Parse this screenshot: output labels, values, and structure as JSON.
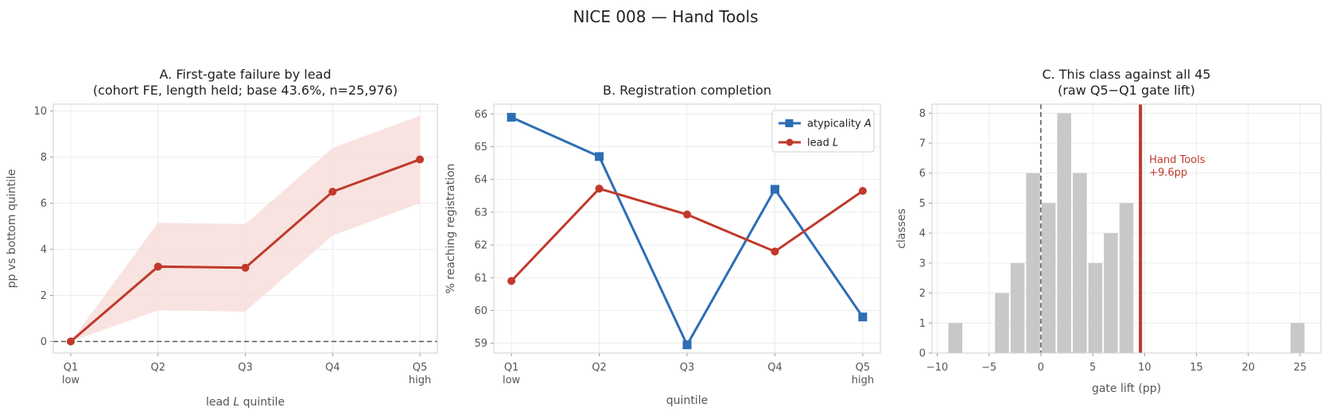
{
  "figure": {
    "title": "NICE 008 — Hand Tools"
  },
  "colors": {
    "red": "#c0392b",
    "blue": "#2c6db5",
    "band": "#f5d9d6",
    "bar": "#c8c8c8",
    "zero": "#555555"
  },
  "chart_data": [
    {
      "id": "A",
      "type": "line",
      "title_lines": [
        "A. First-gate failure by lead",
        "(cohort FE, length held; base 43.6%, n=25,976)"
      ],
      "xlabel": "lead L quintile",
      "ylabel": "pp vs bottom quintile",
      "categories": [
        "Q1",
        "Q2",
        "Q3",
        "Q4",
        "Q5"
      ],
      "category_sublabels": [
        "low",
        "",
        "",
        "",
        "high"
      ],
      "values": [
        0.0,
        3.25,
        3.2,
        6.5,
        7.9
      ],
      "ci_low": [
        0.0,
        1.35,
        1.3,
        4.6,
        6.0
      ],
      "ci_high": [
        0.0,
        5.15,
        5.1,
        8.4,
        9.8
      ],
      "ylim": [
        -0.5,
        10.3
      ],
      "yticks": [
        0,
        2,
        4,
        6,
        8,
        10
      ],
      "reference_line": 0,
      "grid": true
    },
    {
      "id": "B",
      "type": "line",
      "title_lines": [
        "B. Registration completion"
      ],
      "xlabel": "quintile",
      "ylabel": "% reaching registration",
      "categories": [
        "Q1",
        "Q2",
        "Q3",
        "Q4",
        "Q5"
      ],
      "category_sublabels": [
        "low",
        "",
        "",
        "",
        "high"
      ],
      "ylim": [
        58.7,
        66.3
      ],
      "yticks": [
        59,
        60,
        61,
        62,
        63,
        64,
        65,
        66
      ],
      "series": [
        {
          "name": "atypicality A",
          "name_text": "atypicality ",
          "name_var": "A",
          "marker": "square",
          "color": "#2c6db5",
          "values": [
            65.9,
            64.7,
            58.95,
            63.7,
            59.8
          ]
        },
        {
          "name": "lead L",
          "name_text": "lead ",
          "name_var": "L",
          "marker": "circle",
          "color": "#c0392b",
          "values": [
            60.9,
            63.72,
            62.93,
            61.8,
            63.65
          ]
        }
      ],
      "legend": "top-right",
      "grid": true
    },
    {
      "id": "C",
      "type": "bar",
      "subtype": "histogram",
      "title_lines": [
        "C. This class against all 45",
        "(raw Q5−Q1 gate lift)"
      ],
      "xlabel": "gate lift (pp)",
      "ylabel": "classes",
      "bins": [
        {
          "from": -9,
          "to": -7.5,
          "count": 1
        },
        {
          "from": -4.5,
          "to": -3,
          "count": 2
        },
        {
          "from": -3,
          "to": -1.5,
          "count": 3
        },
        {
          "from": -1.5,
          "to": 0,
          "count": 6
        },
        {
          "from": 0,
          "to": 1.5,
          "count": 5
        },
        {
          "from": 1.5,
          "to": 3,
          "count": 8
        },
        {
          "from": 3,
          "to": 4.5,
          "count": 6
        },
        {
          "from": 4.5,
          "to": 6,
          "count": 3
        },
        {
          "from": 6,
          "to": 7.5,
          "count": 4
        },
        {
          "from": 7.5,
          "to": 9,
          "count": 5
        },
        {
          "from": 24,
          "to": 25.5,
          "count": 1
        }
      ],
      "xlim": [
        -10.5,
        27
      ],
      "ylim": [
        0,
        8.3
      ],
      "xticks": [
        -10,
        -5,
        0,
        5,
        10,
        15,
        20,
        25
      ],
      "yticks": [
        0,
        1,
        2,
        3,
        4,
        5,
        6,
        7,
        8
      ],
      "reference_line": 0,
      "highlight": {
        "value": 9.6,
        "label_lines": [
          "Hand Tools",
          "+9.6pp"
        ]
      },
      "grid": true
    }
  ]
}
